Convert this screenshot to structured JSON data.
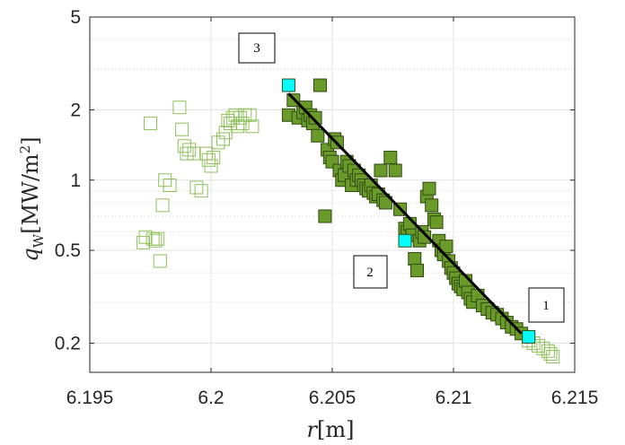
{
  "chart_data": {
    "type": "scatter",
    "title": "",
    "xlabel": "r[m]",
    "ylabel": "q_w [MW/m^2]",
    "x_scale": "linear",
    "y_scale": "log",
    "xlim": [
      6.195,
      6.215
    ],
    "ylim": [
      0.15,
      5
    ],
    "xticks": [
      "6.195",
      "6.2",
      "6.205",
      "6.21",
      "6.215"
    ],
    "yticks": [
      "0.2",
      "0.5",
      "1",
      "2",
      "5"
    ],
    "grid": true,
    "legend": "none",
    "colors": {
      "filled": "#6a9a2a",
      "filled_edge": "#2f4a10",
      "open": "#8fbf5a",
      "endpoint": "#00ffff",
      "fit": "#000000"
    },
    "series": [
      {
        "style": "filled-square",
        "x": [
          6.2032,
          6.2034,
          6.2036,
          6.2038,
          6.2039,
          6.204,
          6.2041,
          6.2042,
          6.2043,
          6.2044,
          6.2045,
          6.2047,
          6.2048,
          6.2049,
          6.205,
          6.2051,
          6.2052,
          6.2053,
          6.2054,
          6.2055,
          6.2056,
          6.2057,
          6.2058,
          6.2059,
          6.206,
          6.2061,
          6.2062,
          6.2063,
          6.2064,
          6.2065,
          6.2066,
          6.2067,
          6.2068,
          6.2069,
          6.207,
          6.2071,
          6.2072,
          6.2074,
          6.2076,
          6.2078,
          6.208,
          6.2081,
          6.2082,
          6.2083,
          6.2084,
          6.2085,
          6.2086,
          6.2087,
          6.2088,
          6.2089,
          6.209,
          6.2091,
          6.2092,
          6.2093,
          6.2094,
          6.2095,
          6.2096,
          6.2097,
          6.2098,
          6.2099,
          6.21,
          6.2101,
          6.2102,
          6.2103,
          6.2104,
          6.2105,
          6.2106,
          6.2107,
          6.2108,
          6.211,
          6.2112,
          6.2114,
          6.2116,
          6.2118,
          6.212,
          6.2122,
          6.2124,
          6.2126,
          6.2128
        ],
        "y": [
          1.9,
          2.2,
          1.85,
          1.95,
          2.05,
          1.8,
          1.9,
          1.75,
          1.85,
          1.55,
          2.55,
          0.7,
          1.35,
          1.25,
          1.2,
          1.5,
          1.45,
          1.1,
          1.0,
          1.05,
          1.2,
          1.15,
          0.95,
          1.1,
          1.0,
          1.05,
          1.0,
          0.95,
          0.92,
          0.9,
          0.95,
          0.88,
          0.85,
          0.87,
          1.1,
          0.82,
          0.8,
          1.25,
          1.1,
          0.75,
          0.62,
          0.6,
          0.65,
          0.58,
          0.46,
          0.41,
          0.55,
          0.6,
          0.57,
          0.85,
          0.92,
          0.78,
          0.68,
          0.66,
          0.55,
          0.5,
          0.48,
          0.52,
          0.45,
          0.42,
          0.4,
          0.38,
          0.36,
          0.35,
          0.34,
          0.37,
          0.33,
          0.31,
          0.3,
          0.32,
          0.29,
          0.28,
          0.27,
          0.265,
          0.255,
          0.245,
          0.235,
          0.23,
          0.22
        ]
      },
      {
        "style": "open-square",
        "x": [
          6.1972,
          6.1973,
          6.1975,
          6.1976,
          6.1977,
          6.1978,
          6.1979,
          6.198,
          6.1981,
          6.1983,
          6.1987,
          6.1988,
          6.1989,
          6.199,
          6.1991,
          6.1993,
          6.1994,
          6.1996,
          6.1998,
          6.1999,
          6.2,
          6.2001,
          6.2003,
          6.2005,
          6.2006,
          6.2007,
          6.2008,
          6.2009,
          6.201,
          6.2011,
          6.2012,
          6.2013,
          6.2014,
          6.2016,
          6.2017,
          6.2131,
          6.2133,
          6.2135,
          6.2137,
          6.2139,
          6.214,
          6.2141
        ],
        "y": [
          0.54,
          0.57,
          1.75,
          0.56,
          0.55,
          0.56,
          0.45,
          0.78,
          1.0,
          0.95,
          2.05,
          1.65,
          1.4,
          1.3,
          1.35,
          1.3,
          0.93,
          0.9,
          1.3,
          1.22,
          1.15,
          1.25,
          1.45,
          1.5,
          1.6,
          1.8,
          1.75,
          1.85,
          1.9,
          1.7,
          1.85,
          1.75,
          1.9,
          1.9,
          1.7,
          0.205,
          0.2,
          0.195,
          0.19,
          0.185,
          0.18,
          0.175
        ]
      },
      {
        "style": "endpoint",
        "x": [
          6.2032,
          6.208,
          6.2131
        ],
        "y": [
          2.55,
          0.55,
          0.213
        ]
      }
    ],
    "fit_line": {
      "x": [
        6.2032,
        6.2128
      ],
      "y": [
        2.35,
        0.22
      ]
    },
    "annotations": [
      "1",
      "2",
      "3"
    ]
  }
}
